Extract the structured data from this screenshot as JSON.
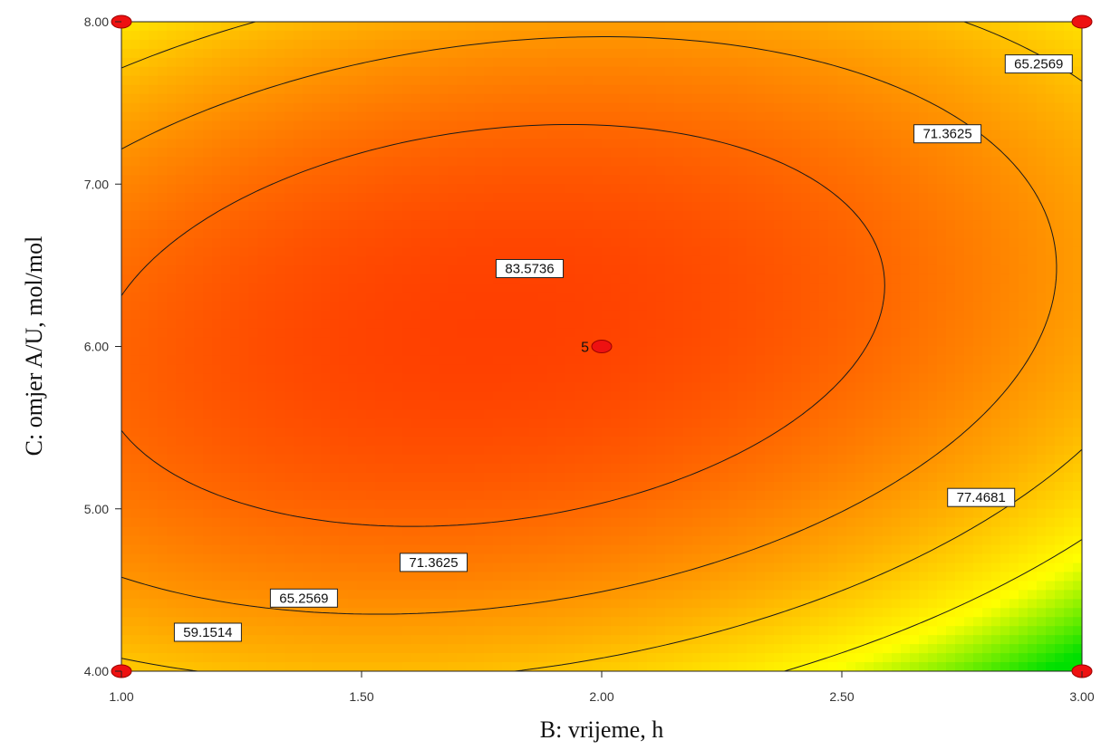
{
  "chart_data": {
    "type": "heatmap",
    "subtype": "contour",
    "title": "",
    "xlabel": "B: vrijeme, h",
    "ylabel": "C: omjer A/U, mol/mol",
    "xlim": [
      1.0,
      3.0
    ],
    "ylim": [
      4.0,
      8.0
    ],
    "x_ticks": [
      "1.00",
      "1.50",
      "2.00",
      "2.50",
      "3.00"
    ],
    "y_ticks": [
      "4.00",
      "5.00",
      "6.00",
      "7.00",
      "8.00"
    ],
    "grid": false,
    "colormap": [
      "#00e000",
      "#ffff00",
      "#ffb000",
      "#ff6a00",
      "#ff2400"
    ],
    "contour_levels": [
      59.1514,
      65.2569,
      71.3625,
      77.4681,
      83.5736
    ],
    "contour_labels": [
      {
        "text": "83.5736",
        "x": 1.85,
        "y": 6.48
      },
      {
        "text": "77.4681",
        "x": 2.79,
        "y": 5.07
      },
      {
        "text": "71.3625",
        "x": 2.72,
        "y": 7.31
      },
      {
        "text": "71.3625",
        "x": 1.65,
        "y": 4.67
      },
      {
        "text": "65.2569",
        "x": 2.91,
        "y": 7.74
      },
      {
        "text": "65.2569",
        "x": 1.38,
        "y": 4.45
      },
      {
        "text": "59.1514",
        "x": 1.18,
        "y": 4.24
      }
    ],
    "design_points": [
      {
        "x": 1.0,
        "y": 8.0,
        "label": ""
      },
      {
        "x": 3.0,
        "y": 8.0,
        "label": ""
      },
      {
        "x": 1.0,
        "y": 4.0,
        "label": ""
      },
      {
        "x": 3.0,
        "y": 4.0,
        "label": ""
      },
      {
        "x": 2.0,
        "y": 6.0,
        "label": "5"
      }
    ],
    "point_color": "#ee1111"
  }
}
